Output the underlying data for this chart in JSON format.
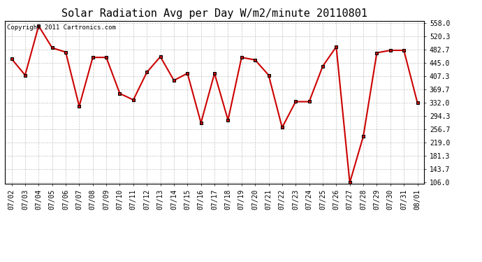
{
  "title": "Solar Radiation Avg per Day W/m2/minute 20110801",
  "copyright_text": "Copyright 2011 Cartronics.com",
  "x_labels": [
    "07/02",
    "07/03",
    "07/04",
    "07/05",
    "07/06",
    "07/07",
    "07/08",
    "07/09",
    "07/10",
    "07/11",
    "07/12",
    "07/13",
    "07/14",
    "07/15",
    "07/16",
    "07/17",
    "07/18",
    "07/19",
    "07/20",
    "07/21",
    "07/22",
    "07/23",
    "07/24",
    "07/25",
    "07/26",
    "07/27",
    "07/28",
    "07/29",
    "07/30",
    "07/31",
    "08/01"
  ],
  "y_values": [
    456.0,
    410.0,
    549.0,
    487.0,
    475.0,
    322.0,
    460.0,
    460.0,
    358.0,
    340.0,
    418.0,
    462.0,
    395.0,
    415.0,
    275.0,
    415.0,
    283.0,
    460.0,
    453.0,
    410.0,
    262.0,
    335.0,
    335.0,
    435.0,
    490.0,
    106.0,
    237.0,
    473.0,
    480.0,
    480.0,
    332.0
  ],
  "line_color": "#cc0000",
  "marker_color": "#cc0000",
  "marker_style": "s",
  "marker_size": 2.5,
  "line_width": 1.5,
  "background_color": "#ffffff",
  "plot_bg_color": "#ffffff",
  "grid_color": "#aaaaaa",
  "y_min": 106.0,
  "y_max": 558.0,
  "y_ticks": [
    106.0,
    143.7,
    181.3,
    219.0,
    256.7,
    294.3,
    332.0,
    369.7,
    407.3,
    445.0,
    482.7,
    520.3,
    558.0
  ],
  "title_fontsize": 11,
  "tick_fontsize": 7,
  "copyright_fontsize": 6.5,
  "fig_width": 6.9,
  "fig_height": 3.75,
  "dpi": 100
}
